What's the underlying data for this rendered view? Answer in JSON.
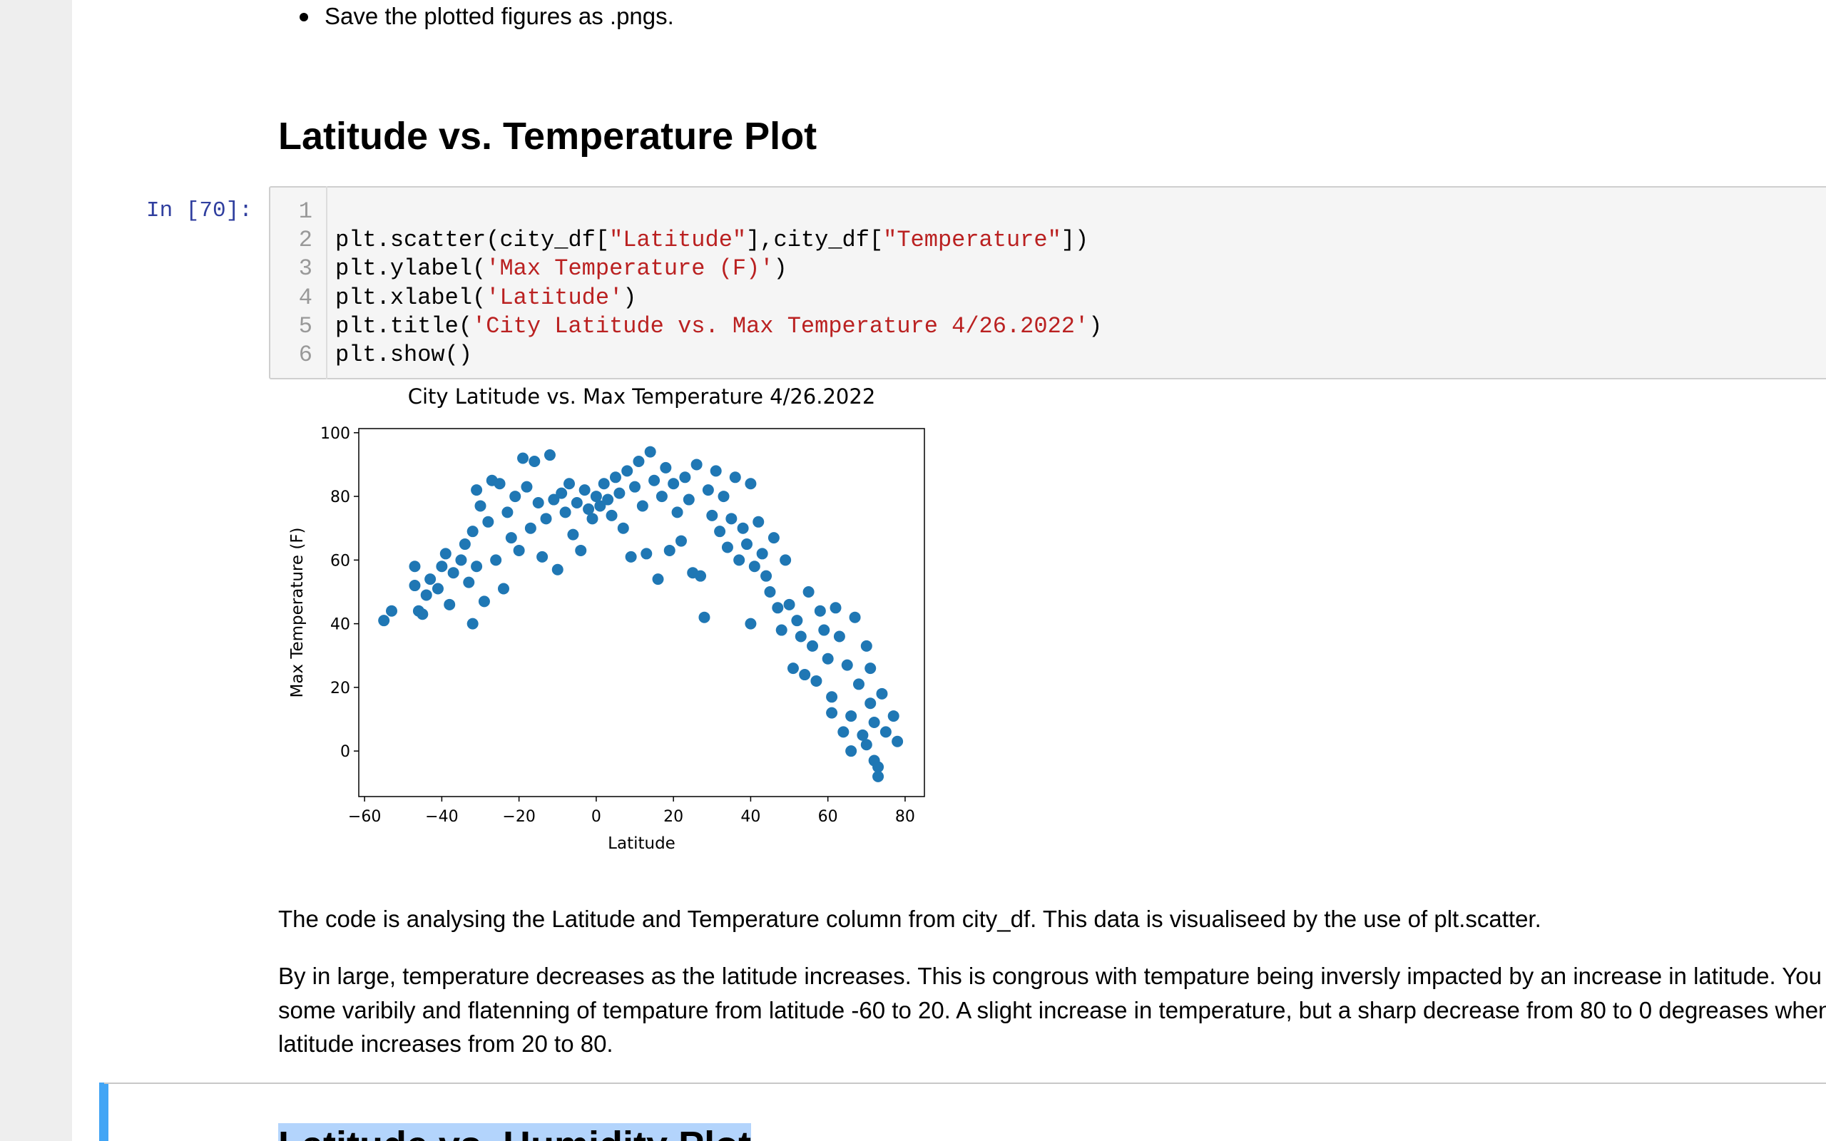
{
  "bullet": "Save the plotted figures as .pngs.",
  "heading": "Latitude vs. Temperature Plot",
  "cell": {
    "prompt": "In [70]:",
    "line_numbers": [
      1,
      2,
      3,
      4,
      5,
      6
    ],
    "lines": [
      [],
      [
        {
          "text": "plt.scatter(city_df[",
          "style": "plain"
        },
        {
          "text": "\"Latitude\"",
          "style": "string"
        },
        {
          "text": "],city_df[",
          "style": "plain"
        },
        {
          "text": "\"Temperature\"",
          "style": "string"
        },
        {
          "text": "])",
          "style": "plain"
        }
      ],
      [
        {
          "text": "plt.ylabel(",
          "style": "plain"
        },
        {
          "text": "'Max Temperature (F)'",
          "style": "string"
        },
        {
          "text": ")",
          "style": "plain"
        }
      ],
      [
        {
          "text": "plt.xlabel(",
          "style": "plain"
        },
        {
          "text": "'Latitude'",
          "style": "string"
        },
        {
          "text": ")",
          "style": "plain"
        }
      ],
      [
        {
          "text": "plt.title(",
          "style": "plain"
        },
        {
          "text": "'City Latitude vs. Max Temperature 4/26.2022'",
          "style": "string"
        },
        {
          "text": ")",
          "style": "plain"
        }
      ],
      [
        {
          "text": "plt.show()",
          "style": "plain"
        }
      ]
    ]
  },
  "chart_data": {
    "type": "scatter",
    "title": "City Latitude vs. Max Temperature 4/26.2022",
    "x_label": "Latitude",
    "y_label": "Max Temperature (F)",
    "color": "#1f77b4",
    "xlim": [
      -61.5,
      85
    ],
    "ylim": [
      -14.3,
      101.3
    ],
    "xticks": [
      {
        "value": -60,
        "label": "−60"
      },
      {
        "value": -40,
        "label": "−40"
      },
      {
        "value": -20,
        "label": "−20"
      },
      0,
      20,
      40,
      60,
      80
    ],
    "yticks": [
      0,
      20,
      40,
      60,
      80,
      100
    ],
    "x": [
      -55,
      -53,
      -47,
      -47,
      -46,
      -45,
      -44,
      -43,
      -41,
      -40,
      -39,
      -38,
      -37,
      -35,
      -34,
      -33,
      -32,
      -32,
      -31,
      -31,
      -30,
      -29,
      -28,
      -27,
      -26,
      -25,
      -24,
      -23,
      -22,
      -21,
      -20,
      -19,
      -18,
      -17,
      -16,
      -15,
      -14,
      -13,
      -12,
      -11,
      -10,
      -9,
      -8,
      -7,
      -6,
      -5,
      -4,
      -3,
      -2,
      -1,
      0,
      1,
      2,
      3,
      4,
      5,
      6,
      7,
      8,
      9,
      10,
      11,
      12,
      13,
      14,
      15,
      16,
      17,
      18,
      19,
      20,
      21,
      22,
      23,
      24,
      25,
      26,
      27,
      28,
      29,
      30,
      31,
      32,
      33,
      34,
      35,
      36,
      37,
      38,
      39,
      40,
      40,
      41,
      42,
      43,
      44,
      45,
      46,
      47,
      48,
      49,
      50,
      51,
      52,
      53,
      54,
      55,
      56,
      57,
      58,
      59,
      60,
      61,
      61,
      62,
      63,
      64,
      65,
      66,
      66,
      67,
      68,
      69,
      70,
      70,
      71,
      71,
      72,
      72,
      73,
      73,
      74,
      75,
      77,
      78
    ],
    "values": [
      41,
      44,
      52,
      58,
      44,
      43,
      49,
      54,
      51,
      58,
      62,
      46,
      56,
      60,
      65,
      53,
      69,
      40,
      82,
      58,
      77,
      47,
      72,
      85,
      60,
      84,
      51,
      75,
      67,
      80,
      63,
      92,
      83,
      70,
      91,
      78,
      61,
      73,
      93,
      79,
      57,
      81,
      75,
      84,
      68,
      78,
      63,
      82,
      76,
      73,
      80,
      77,
      84,
      79,
      74,
      86,
      81,
      70,
      88,
      61,
      83,
      91,
      77,
      62,
      94,
      85,
      54,
      80,
      89,
      63,
      84,
      75,
      66,
      86,
      79,
      56,
      90,
      55,
      42,
      82,
      74,
      88,
      69,
      80,
      64,
      73,
      86,
      60,
      70,
      65,
      84,
      40,
      58,
      72,
      62,
      55,
      50,
      67,
      45,
      38,
      60,
      46,
      26,
      41,
      36,
      24,
      50,
      33,
      22,
      44,
      38,
      29,
      17,
      12,
      45,
      36,
      6,
      27,
      11,
      0,
      42,
      21,
      5,
      2,
      33,
      15,
      26,
      9,
      -3,
      -5,
      -8,
      18,
      6,
      11,
      3
    ]
  },
  "paragraphs": [
    {
      "lines": [
        "The code is analysing the Latitude and Temperature column from city_df. This data is visualiseed by the use of plt.scatter."
      ]
    },
    {
      "lines": [
        "By in large, temperature decreases as the latitude increases. This is congrous with tempature being inversly impacted by an increase in latitude. You can see",
        "some varibily and flatenning of tempature from latitude -60 to 20. A slight increase in temperature, but a sharp decrease from 80 to 0 degreases when",
        "latitude increases from 20 to 80."
      ]
    }
  ],
  "next_heading": "Latitude vs. Humidity Plot"
}
